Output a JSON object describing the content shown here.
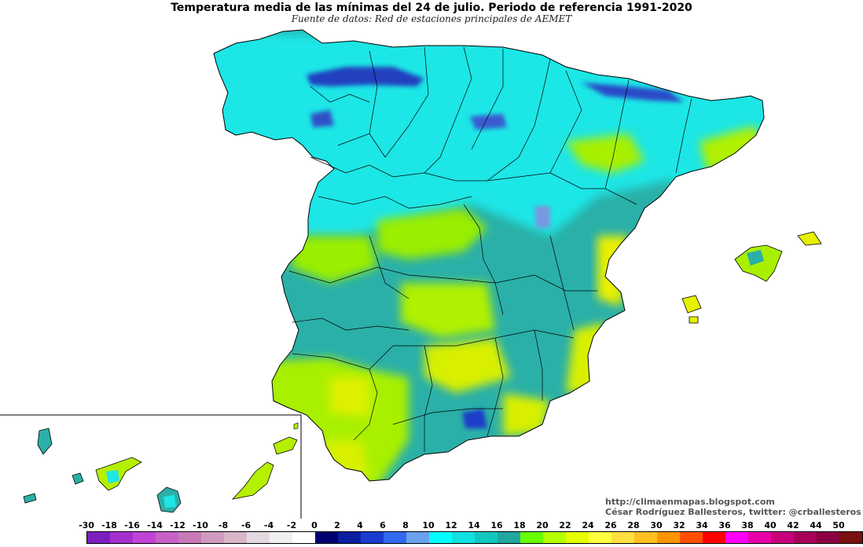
{
  "header": {
    "title": "Temperatura media de las mínimas del 24 de julio. Periodo de referencia 1991-2020",
    "subtitle": "Fuente de datos: Red de estaciones principales de AEMET"
  },
  "credits": {
    "blog": "http://climaenmapas.blogspot.com",
    "author": "César Rodríguez Ballesteros, twitter: @crballesteros"
  },
  "legend": {
    "labels": [
      "-30",
      "-18",
      "-16",
      "-14",
      "-12",
      "-10",
      "-8",
      "-6",
      "-4",
      "-2",
      "0",
      "2",
      "4",
      "6",
      "8",
      "10",
      "12",
      "14",
      "16",
      "18",
      "20",
      "22",
      "24",
      "26",
      "28",
      "30",
      "32",
      "34",
      "36",
      "38",
      "40",
      "42",
      "44",
      "50"
    ],
    "colors": [
      "#7d1fbf",
      "#a52fd0",
      "#c042d8",
      "#c860c8",
      "#c87ab8",
      "#d09ac0",
      "#d8b6c8",
      "#e6d8e0",
      "#f0f0f0",
      "#ffffff",
      "#000070",
      "#0a1ea0",
      "#1c3cd0",
      "#3468f0",
      "#6aa0f0",
      "#00ffff",
      "#10e0e0",
      "#10c8c0",
      "#20a8a0",
      "#66ff00",
      "#b4ff00",
      "#e6ff00",
      "#ffff40",
      "#ffe040",
      "#ffc020",
      "#ff9400",
      "#ff5000",
      "#ff0000",
      "#ff00ff",
      "#e800a8",
      "#c8007a",
      "#a8005a",
      "#8c0040",
      "#7a1010"
    ],
    "map_colors": {
      "cold": "#1f3cc8",
      "cool": "#20e0e0",
      "mild": "#2aa8a0",
      "warm": "#a4f000",
      "hot": "#e8f000"
    }
  },
  "map": {
    "region": "Península Ibérica, Baleares y Canarias"
  }
}
